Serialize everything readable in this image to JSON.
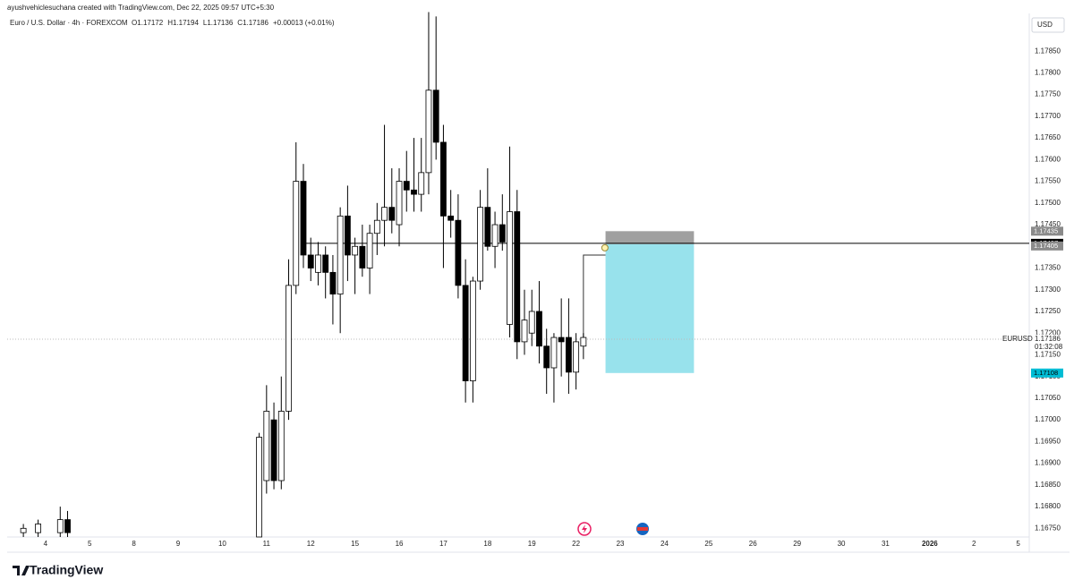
{
  "header": {
    "attribution": "ayushvehiclesuchana created with TradingView.com, Dec 22, 2025 09:57 UTC+5:30"
  },
  "footer": {
    "brand": "TradingView"
  },
  "chart_data": {
    "type": "candlestick",
    "title": "Euro / U.S. Dollar · 4h · FOREXCOM",
    "legend": [
      {
        "label": "O",
        "value": 1.17172
      },
      {
        "label": "H",
        "value": 1.17194
      },
      {
        "label": "L",
        "value": 1.17136
      },
      {
        "label": "C",
        "value": 1.17186
      }
    ],
    "change": "+0.00013 (+0.01%)",
    "currency": "USD",
    "up_color": "#ffffff",
    "down_color": "#000000",
    "x": [
      -3,
      -1,
      2,
      3,
      29,
      30,
      31,
      32,
      33,
      34,
      35,
      36,
      37,
      38,
      39,
      40,
      41,
      42,
      43,
      44,
      45,
      46,
      47,
      48,
      49,
      50,
      51,
      52,
      53,
      54,
      55,
      56,
      57,
      58,
      59,
      60,
      61,
      62,
      63,
      64,
      65,
      66,
      67,
      68,
      69,
      70,
      71,
      72,
      73
    ],
    "open": [
      1.1674,
      1.1674,
      1.1674,
      1.1677,
      1.1673,
      1.1686,
      1.17,
      1.1686,
      1.1702,
      1.1731,
      1.1755,
      1.1738,
      1.1734,
      1.1738,
      1.1734,
      1.1729,
      1.1747,
      1.1738,
      1.174,
      1.1735,
      1.1743,
      1.1746,
      1.1749,
      1.1745,
      1.1755,
      1.1753,
      1.1752,
      1.1757,
      1.1776,
      1.1764,
      1.1747,
      1.1746,
      1.1731,
      1.1709,
      1.1732,
      1.1749,
      1.174,
      1.1745,
      1.1722,
      1.1748,
      1.1718,
      1.172,
      1.1725,
      1.1717,
      1.1712,
      1.1719,
      1.1719,
      1.1711,
      1.1717
    ],
    "high": [
      1.1676,
      1.1677,
      1.168,
      1.1679,
      1.1697,
      1.1708,
      1.1704,
      1.171,
      1.1737,
      1.1764,
      1.1759,
      1.1742,
      1.1741,
      1.174,
      1.1738,
      1.1749,
      1.1754,
      1.1742,
      1.1745,
      1.1745,
      1.175,
      1.1768,
      1.1758,
      1.1758,
      1.1762,
      1.1765,
      1.1765,
      1.1794,
      1.1793,
      1.1768,
      1.1753,
      1.1752,
      1.1737,
      1.1733,
      1.1753,
      1.1758,
      1.1748,
      1.1752,
      1.1763,
      1.1753,
      1.173,
      1.173,
      1.1732,
      1.1721,
      1.172,
      1.1728,
      1.1728,
      1.172,
      1.172
    ],
    "low": [
      1.1673,
      1.1673,
      1.1673,
      1.1673,
      1.1673,
      1.1683,
      1.1684,
      1.1684,
      1.17,
      1.1729,
      1.1735,
      1.1732,
      1.1731,
      1.1728,
      1.1722,
      1.172,
      1.1732,
      1.1729,
      1.1733,
      1.1729,
      1.1738,
      1.174,
      1.1743,
      1.174,
      1.1748,
      1.1748,
      1.1748,
      1.1752,
      1.176,
      1.1735,
      1.1742,
      1.1728,
      1.1704,
      1.1704,
      1.173,
      1.1739,
      1.1735,
      1.1739,
      1.1719,
      1.1714,
      1.1715,
      1.1717,
      1.1713,
      1.1706,
      1.1704,
      1.171,
      1.1706,
      1.1707,
      1.1714
    ],
    "close": [
      1.1675,
      1.1676,
      1.1677,
      1.1674,
      1.1696,
      1.1702,
      1.1686,
      1.1702,
      1.1731,
      1.1755,
      1.1738,
      1.1735,
      1.1738,
      1.1734,
      1.1729,
      1.1747,
      1.1738,
      1.174,
      1.1735,
      1.1743,
      1.1746,
      1.1749,
      1.1746,
      1.1755,
      1.1753,
      1.1752,
      1.1757,
      1.1776,
      1.1764,
      1.1747,
      1.1746,
      1.1731,
      1.1709,
      1.1732,
      1.1749,
      1.174,
      1.1745,
      1.1741,
      1.1748,
      1.1718,
      1.1723,
      1.1725,
      1.1717,
      1.1712,
      1.1719,
      1.1718,
      1.1711,
      1.1718,
      1.1719
    ],
    "xlim": [
      -5.2,
      133.5
    ],
    "ylim": [
      1.1673,
      1.17937
    ],
    "xticks": [
      {
        "value": 0,
        "label": "4"
      },
      {
        "value": 6,
        "label": "5"
      },
      {
        "value": 12,
        "label": "8"
      },
      {
        "value": 18,
        "label": "9"
      },
      {
        "value": 24,
        "label": "10"
      },
      {
        "value": 30,
        "label": "11"
      },
      {
        "value": 36,
        "label": "12"
      },
      {
        "value": 42,
        "label": "15"
      },
      {
        "value": 48,
        "label": "16"
      },
      {
        "value": 54,
        "label": "17"
      },
      {
        "value": 60,
        "label": "18"
      },
      {
        "value": 66,
        "label": "19"
      },
      {
        "value": 72,
        "label": "22"
      },
      {
        "value": 78,
        "label": "23"
      },
      {
        "value": 84,
        "label": "24"
      },
      {
        "value": 90,
        "label": "25"
      },
      {
        "value": 96,
        "label": "26"
      },
      {
        "value": 102,
        "label": "29"
      },
      {
        "value": 108,
        "label": "30"
      },
      {
        "value": 114,
        "label": "31"
      },
      {
        "value": 120,
        "label": "2026"
      },
      {
        "value": 126,
        "label": "2"
      },
      {
        "value": 132,
        "label": "5"
      }
    ],
    "yticks": [
      {
        "value": 1.1675,
        "label": "1.16750"
      },
      {
        "value": 1.168,
        "label": "1.16800"
      },
      {
        "value": 1.1685,
        "label": "1.16850"
      },
      {
        "value": 1.169,
        "label": "1.16900"
      },
      {
        "value": 1.1695,
        "label": "1.16950"
      },
      {
        "value": 1.17,
        "label": "1.17000"
      },
      {
        "value": 1.1705,
        "label": "1.17050"
      },
      {
        "value": 1.171,
        "label": "1.17100"
      },
      {
        "value": 1.1715,
        "label": "1.17150"
      },
      {
        "value": 1.172,
        "label": "1.17200"
      },
      {
        "value": 1.1725,
        "label": "1.17250"
      },
      {
        "value": 1.173,
        "label": "1.17300"
      },
      {
        "value": 1.1735,
        "label": "1.17350"
      },
      {
        "value": 1.174,
        "label": "1.17400"
      },
      {
        "value": 1.1745,
        "label": "1.17450"
      },
      {
        "value": 1.175,
        "label": "1.17500"
      },
      {
        "value": 1.1755,
        "label": "1.17550"
      },
      {
        "value": 1.176,
        "label": "1.17600"
      },
      {
        "value": 1.1765,
        "label": "1.17650"
      },
      {
        "value": 1.177,
        "label": "1.17700"
      },
      {
        "value": 1.1775,
        "label": "1.17750"
      },
      {
        "value": 1.178,
        "label": "1.17800"
      },
      {
        "value": 1.1785,
        "label": "1.17850"
      }
    ],
    "grid": false,
    "hline": {
      "value": 1.17407,
      "start": 35,
      "color": "#000000"
    },
    "position": {
      "x": [
        76,
        88
      ],
      "stop": 1.17435,
      "entry": 1.17405,
      "target": 1.17108,
      "stop_color": "#a0a0a0",
      "target_color": "#98e2ec",
      "target_tag_color": "#00bcd4"
    },
    "drawing": {
      "x": [
        73,
        73,
        76
      ],
      "y": [
        1.1719,
        1.1738,
        1.1738
      ]
    },
    "last_price": {
      "symbol": "EURUSD",
      "value": 1.17186,
      "countdown": "01:32:08"
    }
  }
}
